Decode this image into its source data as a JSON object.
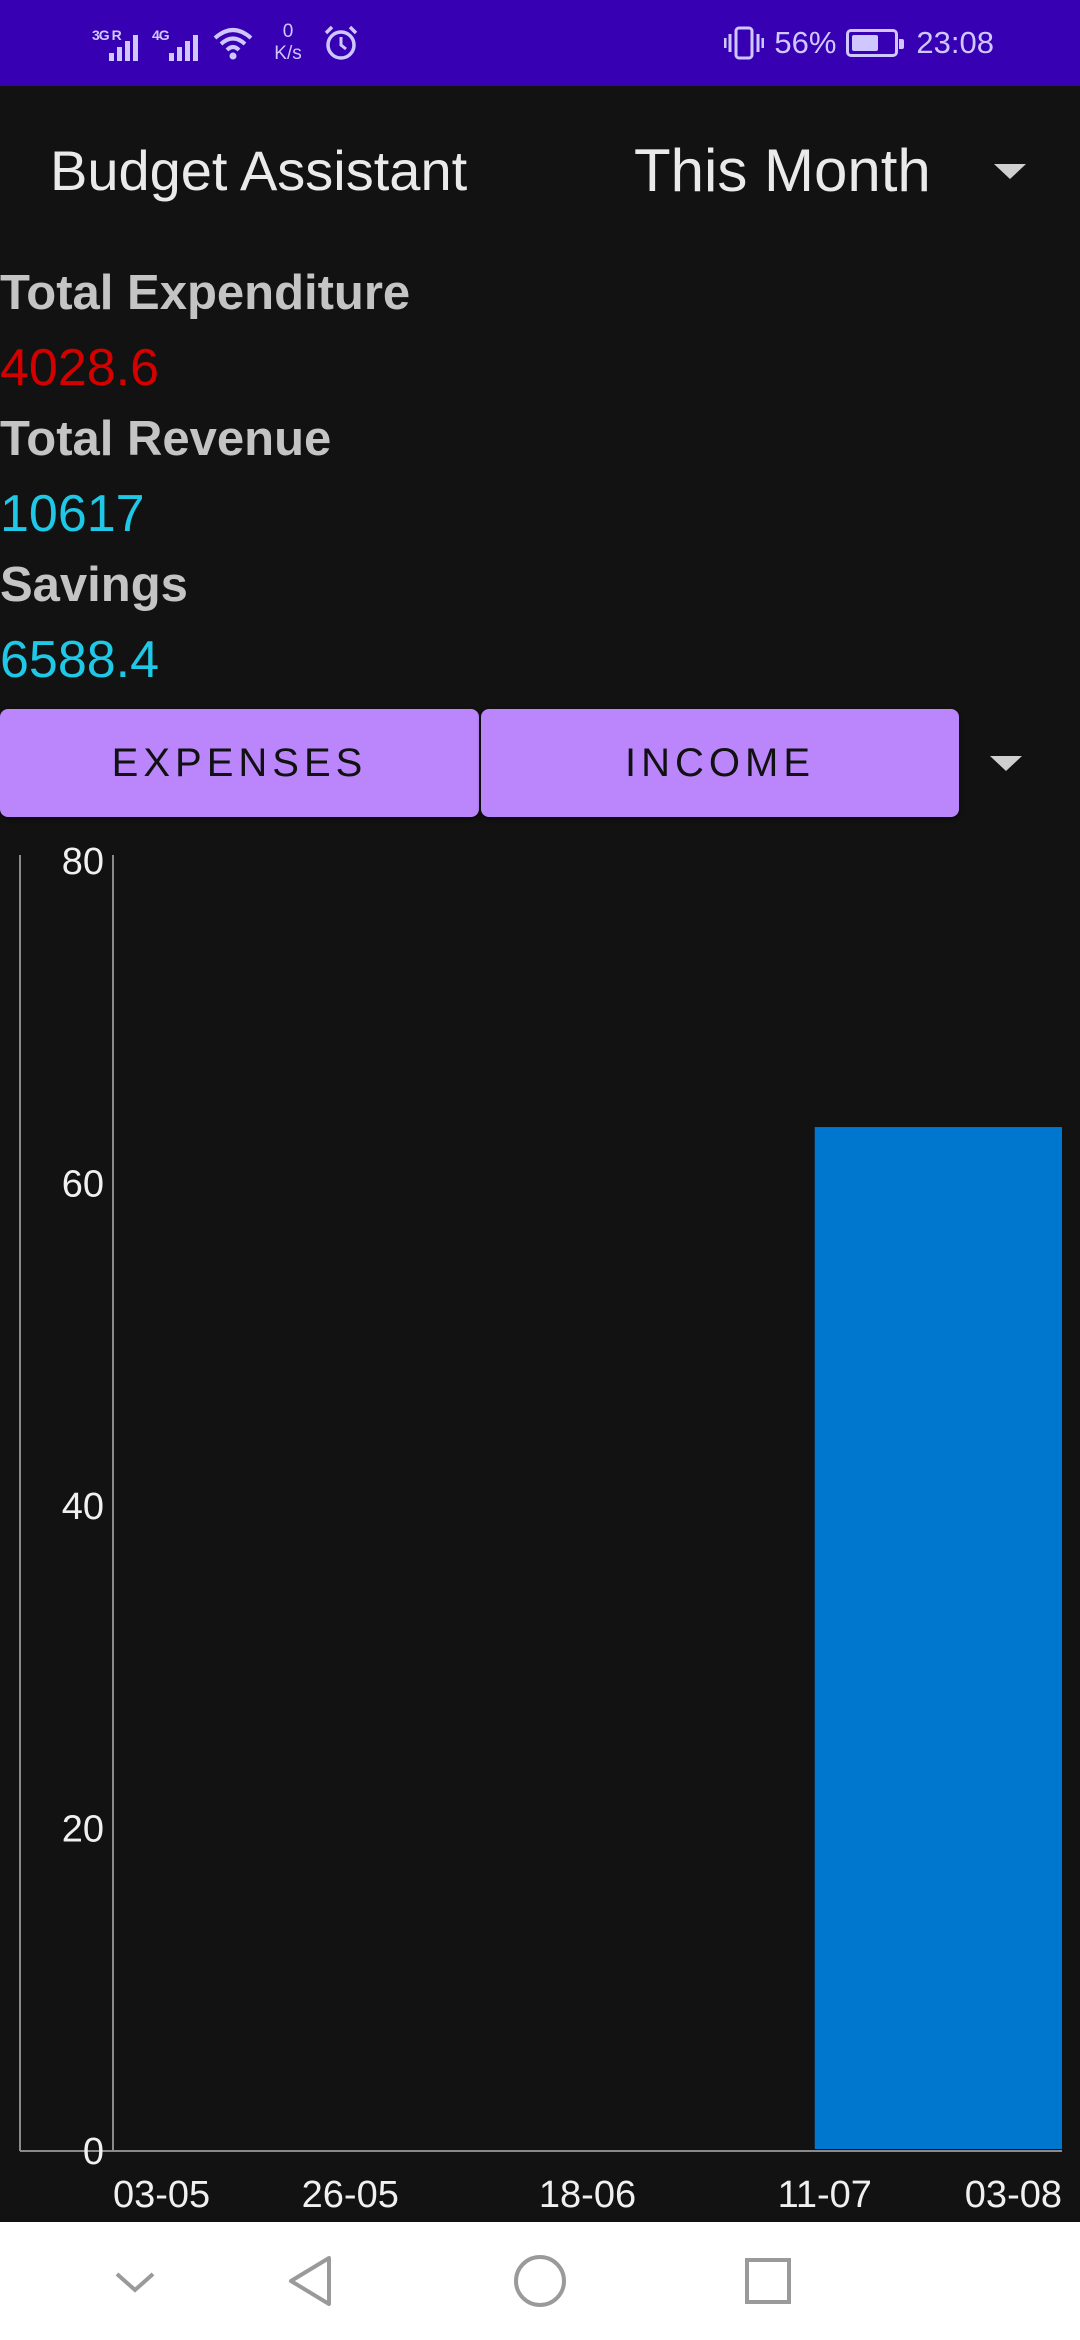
{
  "status_bar": {
    "sim1_tag": "3G R",
    "sim2_tag": "4G",
    "net_speed_value": "0",
    "net_speed_unit": "K/s",
    "battery_percent": "56%",
    "battery_level": 0.56,
    "time": "23:08"
  },
  "header": {
    "title": "Budget Assistant",
    "period": "This Month"
  },
  "summary": {
    "expenditure_label": "Total Expenditure",
    "expenditure_value": "4028.6",
    "revenue_label": "Total Revenue",
    "revenue_value": "10617",
    "savings_label": "Savings",
    "savings_value": "6588.4"
  },
  "colors": {
    "status_bar": "#3700b3",
    "tab_bg": "#bb86fc",
    "expense_red": "#d40000",
    "positive_cyan": "#1ec8e6",
    "bar_blue": "#0077cf",
    "background": "#121212"
  },
  "tabs": {
    "expenses_label": "EXPENSES",
    "income_label": "INCOME"
  },
  "nav": {
    "icons": [
      "chevron-down-icon",
      "back-triangle-icon",
      "home-circle-icon",
      "recents-square-icon"
    ]
  },
  "chart_data": {
    "type": "bar",
    "categories": [
      "03-05",
      "26-05",
      "18-06",
      "11-07",
      "03-08"
    ],
    "x_ticks": [
      "03-05",
      "26-05",
      "18-06",
      "11-07",
      "03-08"
    ],
    "y_ticks": [
      0,
      20,
      40,
      60,
      80
    ],
    "ylim": [
      0,
      80
    ],
    "bars": [
      {
        "from": "11-07",
        "to": "03-08",
        "value": 63.5
      }
    ],
    "grid": false
  }
}
